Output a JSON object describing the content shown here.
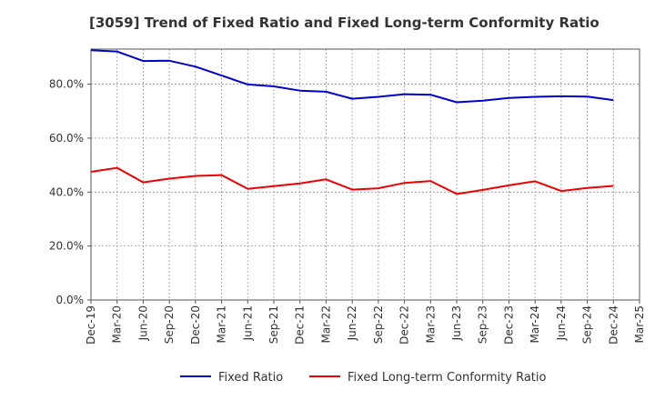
{
  "chart_data": {
    "type": "line",
    "title": "[3059]  Trend of Fixed Ratio and Fixed Long-term Conformity Ratio",
    "xlabel": "",
    "ylabel": "",
    "x": [
      "Dec-19",
      "Mar-20",
      "Jun-20",
      "Sep-20",
      "Dec-20",
      "Mar-21",
      "Jun-21",
      "Sep-21",
      "Dec-21",
      "Mar-22",
      "Jun-22",
      "Sep-22",
      "Dec-22",
      "Mar-23",
      "Jun-23",
      "Sep-23",
      "Dec-23",
      "Mar-24",
      "Jun-24",
      "Sep-24",
      "Dec-24"
    ],
    "x_ticks": [
      "Dec-19",
      "Mar-20",
      "Jun-20",
      "Sep-20",
      "Dec-20",
      "Mar-21",
      "Jun-21",
      "Sep-21",
      "Dec-21",
      "Mar-22",
      "Jun-22",
      "Sep-22",
      "Dec-22",
      "Mar-23",
      "Jun-23",
      "Sep-23",
      "Dec-23",
      "Mar-24",
      "Jun-24",
      "Sep-24",
      "Dec-24",
      "Mar-25"
    ],
    "y_ticks": [
      0,
      20,
      40,
      60,
      80
    ],
    "y_tick_labels": [
      "0.0%",
      "20.0%",
      "40.0%",
      "60.0%",
      "80.0%"
    ],
    "ylim": [
      0,
      93
    ],
    "grid": true,
    "legend_position": "bottom",
    "series": [
      {
        "name": "Fixed Ratio",
        "color": "#0000cc",
        "values": [
          92.6,
          92.1,
          88.6,
          88.7,
          86.5,
          83.2,
          79.9,
          79.2,
          77.6,
          77.2,
          74.6,
          75.3,
          76.3,
          76.1,
          73.3,
          73.9,
          74.9,
          75.3,
          75.5,
          75.4,
          74.1
        ]
      },
      {
        "name": "Fixed Long-term Conformity Ratio",
        "color": "#ee0000",
        "values": [
          47.5,
          49.0,
          43.6,
          45.0,
          46.0,
          46.3,
          41.2,
          42.2,
          43.2,
          44.7,
          40.9,
          41.4,
          43.4,
          44.1,
          39.3,
          40.8,
          42.5,
          44.0,
          40.4,
          41.5,
          42.3
        ]
      }
    ]
  }
}
